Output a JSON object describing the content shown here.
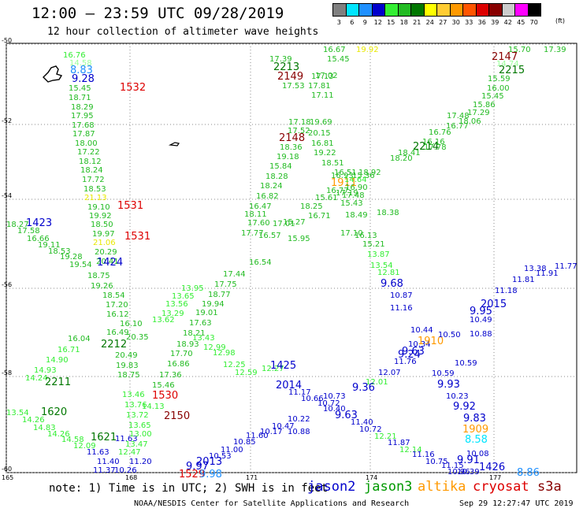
{
  "title": "12:00 – 23:59 UTC 09/28/2019",
  "subtitle": "12 hour collection of altimeter wave heights",
  "legend": {
    "labels": [
      "3",
      "6",
      "9",
      "12",
      "15",
      "18",
      "21",
      "24",
      "27",
      "30",
      "33",
      "36",
      "39",
      "42",
      "45",
      "70"
    ],
    "colors": [
      "#7f7f7f",
      "#00e5ff",
      "#1f90ff",
      "#0000cc",
      "#33ee33",
      "#22bb22",
      "#007700",
      "#ffff00",
      "#ffcc33",
      "#ff9900",
      "#ff5500",
      "#dd0000",
      "#880000",
      "#cccccc",
      "#ff00ff",
      "#000000"
    ],
    "unit": "(ft)"
  },
  "axes": {
    "y_labels": [
      "-50",
      "-52",
      "-54",
      "-56",
      "-58",
      "-60"
    ],
    "x_labels": [
      "165",
      "168",
      "171",
      "174",
      "177"
    ]
  },
  "map": {
    "labels": [
      {
        "t": "16.76",
        "c": "#33ee33"
      },
      {
        "t": "14.58",
        "c": "#99ff99"
      },
      {
        "t": "8.83",
        "c": "#1f90ff"
      },
      {
        "t": "9.28",
        "c": "#0000cc"
      },
      {
        "t": "15.45",
        "c": "#22bb22"
      },
      {
        "t": "18.71",
        "c": "#22bb22"
      },
      {
        "t": "18.29",
        "c": "#22bb22"
      },
      {
        "t": "17.95",
        "c": "#22bb22"
      },
      {
        "t": "17.68",
        "c": "#22bb22"
      },
      {
        "t": "17.87",
        "c": "#22bb22"
      },
      {
        "t": "18.00",
        "c": "#22bb22"
      },
      {
        "t": "17.22",
        "c": "#22bb22"
      },
      {
        "t": "18.12",
        "c": "#22bb22"
      },
      {
        "t": "18.24",
        "c": "#22bb22"
      },
      {
        "t": "17.72",
        "c": "#22bb22"
      },
      {
        "t": "18.53",
        "c": "#22bb22"
      },
      {
        "t": "21.13",
        "c": "#e8e800"
      },
      {
        "t": "19.10",
        "c": "#22bb22"
      },
      {
        "t": "19.92",
        "c": "#22bb22"
      },
      {
        "t": "18.50",
        "c": "#22bb22"
      },
      {
        "t": "19.97",
        "c": "#22bb22"
      },
      {
        "t": "21.06",
        "c": "#e8e800"
      },
      {
        "t": "20.29",
        "c": "#22bb22"
      },
      {
        "t": "20.41",
        "c": "#22bb22"
      },
      {
        "t": "1532",
        "c": "#dd0000"
      },
      {
        "t": "1531",
        "c": "#dd0000"
      },
      {
        "t": "1531",
        "c": "#dd0000"
      },
      {
        "t": "1423",
        "c": "#0000cc"
      },
      {
        "t": "1424",
        "c": "#0000cc"
      },
      {
        "t": "18.27",
        "c": "#22bb22"
      },
      {
        "t": "17.58",
        "c": "#22bb22"
      },
      {
        "t": "16.66",
        "c": "#22bb22"
      },
      {
        "t": "19.11",
        "c": "#22bb22"
      },
      {
        "t": "18.53",
        "c": "#22bb22"
      },
      {
        "t": "19.28",
        "c": "#22bb22"
      },
      {
        "t": "19.54",
        "c": "#22bb22"
      },
      {
        "t": "18.75",
        "c": "#22bb22"
      },
      {
        "t": "19.26",
        "c": "#22bb22"
      },
      {
        "t": "18.54",
        "c": "#22bb22"
      },
      {
        "t": "17.20",
        "c": "#22bb22"
      },
      {
        "t": "16.12",
        "c": "#22bb22"
      },
      {
        "t": "16.10",
        "c": "#22bb22"
      },
      {
        "t": "16.49",
        "c": "#22bb22"
      },
      {
        "t": "20.35",
        "c": "#22bb22"
      },
      {
        "t": "2212",
        "c": "#007700"
      },
      {
        "t": "20.49",
        "c": "#22bb22"
      },
      {
        "t": "19.83",
        "c": "#22bb22"
      },
      {
        "t": "18.75",
        "c": "#22bb22"
      },
      {
        "t": "16.04",
        "c": "#22bb22"
      },
      {
        "t": "16.71",
        "c": "#33ee33"
      },
      {
        "t": "14.90",
        "c": "#33ee33"
      },
      {
        "t": "14.93",
        "c": "#33ee33"
      },
      {
        "t": "14.24",
        "c": "#33ee33"
      },
      {
        "t": "2211",
        "c": "#007700"
      },
      {
        "t": "13.54",
        "c": "#33ee33"
      },
      {
        "t": "1620",
        "c": "#007700"
      },
      {
        "t": "14.26",
        "c": "#33ee33"
      },
      {
        "t": "14.83",
        "c": "#33ee33"
      },
      {
        "t": "14.26",
        "c": "#33ee33"
      },
      {
        "t": "14.58",
        "c": "#33ee33"
      },
      {
        "t": "12.09",
        "c": "#33ee33"
      },
      {
        "t": "1621",
        "c": "#007700"
      },
      {
        "t": "11.63",
        "c": "#0000cc"
      },
      {
        "t": "11.40",
        "c": "#0000cc"
      },
      {
        "t": "11.37",
        "c": "#0000cc"
      },
      {
        "t": "10.26",
        "c": "#0000cc"
      },
      {
        "t": "11.20",
        "c": "#0000cc"
      },
      {
        "t": "11.63",
        "c": "#0000cc"
      },
      {
        "t": "13.46",
        "c": "#33ee33"
      },
      {
        "t": "13.76",
        "c": "#33ee33"
      },
      {
        "t": "13.72",
        "c": "#33ee33"
      },
      {
        "t": "13.65",
        "c": "#33ee33"
      },
      {
        "t": "13.00",
        "c": "#33ee33"
      },
      {
        "t": "13.47",
        "c": "#33ee33"
      },
      {
        "t": "12.47",
        "c": "#33ee33"
      },
      {
        "t": "1530",
        "c": "#dd0000"
      },
      {
        "t": "2150",
        "c": "#880000"
      },
      {
        "t": "14.13",
        "c": "#33ee33"
      },
      {
        "t": "15.46",
        "c": "#22bb22"
      },
      {
        "t": "17.36",
        "c": "#22bb22"
      },
      {
        "t": "16.86",
        "c": "#22bb22"
      },
      {
        "t": "17.70",
        "c": "#22bb22"
      },
      {
        "t": "18.93",
        "c": "#22bb22"
      },
      {
        "t": "18.21",
        "c": "#22bb22"
      },
      {
        "t": "17.63",
        "c": "#22bb22"
      },
      {
        "t": "19.01",
        "c": "#22bb22"
      },
      {
        "t": "19.94",
        "c": "#22bb22"
      },
      {
        "t": "18.77",
        "c": "#22bb22"
      },
      {
        "t": "17.75",
        "c": "#22bb22"
      },
      {
        "t": "17.44",
        "c": "#22bb22"
      },
      {
        "t": "13.62",
        "c": "#33ee33"
      },
      {
        "t": "13.29",
        "c": "#33ee33"
      },
      {
        "t": "13.56",
        "c": "#33ee33"
      },
      {
        "t": "13.65",
        "c": "#33ee33"
      },
      {
        "t": "13.95",
        "c": "#33ee33"
      },
      {
        "t": "13.43",
        "c": "#33ee33"
      },
      {
        "t": "12.99",
        "c": "#33ee33"
      },
      {
        "t": "12.98",
        "c": "#33ee33"
      },
      {
        "t": "12.25",
        "c": "#33ee33"
      },
      {
        "t": "12.59",
        "c": "#33ee33"
      },
      {
        "t": "12.27",
        "c": "#33ee33"
      },
      {
        "t": "1425",
        "c": "#0000cc"
      },
      {
        "t": "1529",
        "c": "#dd0000"
      },
      {
        "t": "9.97",
        "c": "#0000cc"
      },
      {
        "t": "9.98",
        "c": "#1f90ff"
      },
      {
        "t": "2013",
        "c": "#0000cc"
      },
      {
        "t": "10.53",
        "c": "#0000cc"
      },
      {
        "t": "11.00",
        "c": "#0000cc"
      },
      {
        "t": "10.85",
        "c": "#0000cc"
      },
      {
        "t": "11.60",
        "c": "#0000cc"
      },
      {
        "t": "10.17",
        "c": "#0000cc"
      },
      {
        "t": "10.47",
        "c": "#0000cc"
      },
      {
        "t": "10.22",
        "c": "#0000cc"
      },
      {
        "t": "10.88",
        "c": "#0000cc"
      },
      {
        "t": "2014",
        "c": "#0000cc"
      },
      {
        "t": "11.17",
        "c": "#0000cc"
      },
      {
        "t": "10.66",
        "c": "#0000cc"
      },
      {
        "t": "10.72",
        "c": "#0000cc"
      },
      {
        "t": "10.40",
        "c": "#0000cc"
      },
      {
        "t": "10.73",
        "c": "#0000cc"
      },
      {
        "t": "9.63",
        "c": "#0000cc"
      },
      {
        "t": "11.40",
        "c": "#0000cc"
      },
      {
        "t": "10.72",
        "c": "#0000cc"
      },
      {
        "t": "12.21",
        "c": "#33ee33"
      },
      {
        "t": "11.87",
        "c": "#0000cc"
      },
      {
        "t": "12.14",
        "c": "#33ee33"
      },
      {
        "t": "11.16",
        "c": "#0000cc"
      },
      {
        "t": "10.75",
        "c": "#0000cc"
      },
      {
        "t": "11.15",
        "c": "#0000cc"
      },
      {
        "t": "10.96",
        "c": "#0000cc"
      },
      {
        "t": "10.39",
        "c": "#0000cc"
      },
      {
        "t": "9.91",
        "c": "#0000cc"
      },
      {
        "t": "10.08",
        "c": "#0000cc"
      },
      {
        "t": "1426",
        "c": "#0000cc"
      },
      {
        "t": "8.86",
        "c": "#1f90ff"
      },
      {
        "t": "8.58",
        "c": "#00e5ff"
      },
      {
        "t": "1909",
        "c": "#ff9900"
      },
      {
        "t": "9.83",
        "c": "#0000cc"
      },
      {
        "t": "9.92",
        "c": "#0000cc"
      },
      {
        "t": "10.23",
        "c": "#0000cc"
      },
      {
        "t": "9.93",
        "c": "#0000cc"
      },
      {
        "t": "10.59",
        "c": "#0000cc"
      },
      {
        "t": "10.59",
        "c": "#0000cc"
      },
      {
        "t": "9.63",
        "c": "#0000cc"
      },
      {
        "t": "10.34",
        "c": "#0000cc"
      },
      {
        "t": "1910",
        "c": "#ff9900"
      },
      {
        "t": "10.44",
        "c": "#0000cc"
      },
      {
        "t": "10.50",
        "c": "#0000cc"
      },
      {
        "t": "10.88",
        "c": "#0000cc"
      },
      {
        "t": "10.49",
        "c": "#0000cc"
      },
      {
        "t": "9.95",
        "c": "#0000cc"
      },
      {
        "t": "2015",
        "c": "#0000cc"
      },
      {
        "t": "11.18",
        "c": "#0000cc"
      },
      {
        "t": "11.81",
        "c": "#0000cc"
      },
      {
        "t": "13.38",
        "c": "#0000cc"
      },
      {
        "t": "11.77",
        "c": "#0000cc"
      },
      {
        "t": "11.91",
        "c": "#0000cc"
      },
      {
        "t": "11.76",
        "c": "#0000cc"
      },
      {
        "t": "12.07",
        "c": "#0000cc"
      },
      {
        "t": "12.01",
        "c": "#33ee33"
      },
      {
        "t": "9.36",
        "c": "#0000cc"
      },
      {
        "t": "9.24",
        "c": "#0000cc"
      },
      {
        "t": "11.16",
        "c": "#0000cc"
      },
      {
        "t": "10.87",
        "c": "#0000cc"
      },
      {
        "t": "9.68",
        "c": "#0000cc"
      },
      {
        "t": "12.81",
        "c": "#33ee33"
      },
      {
        "t": "13.54",
        "c": "#33ee33"
      },
      {
        "t": "13.87",
        "c": "#33ee33"
      },
      {
        "t": "15.21",
        "c": "#22bb22"
      },
      {
        "t": "16.13",
        "c": "#22bb22"
      },
      {
        "t": "17.10",
        "c": "#22bb22"
      },
      {
        "t": "18.49",
        "c": "#22bb22"
      },
      {
        "t": "18.38",
        "c": "#22bb22"
      },
      {
        "t": "15.43",
        "c": "#22bb22"
      },
      {
        "t": "17.19",
        "c": "#22bb22"
      },
      {
        "t": "1911",
        "c": "#ff9900"
      },
      {
        "t": "16.93",
        "c": "#22bb22"
      },
      {
        "t": "16.51",
        "c": "#22bb22"
      },
      {
        "t": "18.92",
        "c": "#22bb22"
      },
      {
        "t": "18.51",
        "c": "#22bb22"
      },
      {
        "t": "19.22",
        "c": "#22bb22"
      },
      {
        "t": "16.81",
        "c": "#22bb22"
      },
      {
        "t": "20.15",
        "c": "#22bb22"
      },
      {
        "t": "19.69",
        "c": "#22bb22"
      },
      {
        "t": "19.18",
        "c": "#22bb22"
      },
      {
        "t": "18.36",
        "c": "#22bb22"
      },
      {
        "t": "2148",
        "c": "#880000"
      },
      {
        "t": "17.52",
        "c": "#22bb22"
      },
      {
        "t": "17.18",
        "c": "#22bb22"
      },
      {
        "t": "15.84",
        "c": "#22bb22"
      },
      {
        "t": "18.28",
        "c": "#22bb22"
      },
      {
        "t": "18.24",
        "c": "#22bb22"
      },
      {
        "t": "16.82",
        "c": "#22bb22"
      },
      {
        "t": "16.47",
        "c": "#22bb22"
      },
      {
        "t": "18.11",
        "c": "#22bb22"
      },
      {
        "t": "17.60",
        "c": "#22bb22"
      },
      {
        "t": "17.77",
        "c": "#22bb22"
      },
      {
        "t": "17.01",
        "c": "#22bb22"
      },
      {
        "t": "16.57",
        "c": "#22bb22"
      },
      {
        "t": "15.95",
        "c": "#22bb22"
      },
      {
        "t": "16.54",
        "c": "#22bb22"
      },
      {
        "t": "17.39",
        "c": "#22bb22"
      },
      {
        "t": "2213",
        "c": "#007700"
      },
      {
        "t": "2149",
        "c": "#880000"
      },
      {
        "t": "17.53",
        "c": "#22bb22"
      },
      {
        "t": "17.81",
        "c": "#22bb22"
      },
      {
        "t": "17.11",
        "c": "#22bb22"
      },
      {
        "t": "17.02",
        "c": "#22bb22"
      },
      {
        "t": "17.13",
        "c": "#22bb22"
      },
      {
        "t": "16.67",
        "c": "#22bb22"
      },
      {
        "t": "15.45",
        "c": "#22bb22"
      },
      {
        "t": "19.92",
        "c": "#e8e800"
      },
      {
        "t": "15.70",
        "c": "#22bb22"
      },
      {
        "t": "17.39",
        "c": "#22bb22"
      },
      {
        "t": "2147",
        "c": "#880000"
      },
      {
        "t": "14.74",
        "c": "#99ff99"
      },
      {
        "t": "2215",
        "c": "#007700"
      },
      {
        "t": "15.59",
        "c": "#22bb22"
      },
      {
        "t": "16.00",
        "c": "#22bb22"
      },
      {
        "t": "15.45",
        "c": "#22bb22"
      },
      {
        "t": "15.86",
        "c": "#22bb22"
      },
      {
        "t": "17.29",
        "c": "#22bb22"
      },
      {
        "t": "18.06",
        "c": "#22bb22"
      },
      {
        "t": "17.78",
        "c": "#22bb22"
      },
      {
        "t": "16.16",
        "c": "#22bb22"
      },
      {
        "t": "2214",
        "c": "#007700"
      },
      {
        "t": "18.41",
        "c": "#22bb22"
      },
      {
        "t": "18.20",
        "c": "#22bb22"
      },
      {
        "t": "16.76",
        "c": "#22bb22"
      },
      {
        "t": "16.77",
        "c": "#22bb22"
      },
      {
        "t": "17.48",
        "c": "#22bb22"
      },
      {
        "t": "18.25",
        "c": "#22bb22"
      },
      {
        "t": "16.71",
        "c": "#22bb22"
      },
      {
        "t": "15.27",
        "c": "#22bb22"
      },
      {
        "t": "15.61",
        "c": "#22bb22"
      },
      {
        "t": "15.36",
        "c": "#22bb22"
      },
      {
        "t": "14.64",
        "c": "#33ee33"
      },
      {
        "t": "16.90",
        "c": "#22bb22"
      },
      {
        "t": "16.77",
        "c": "#22bb22"
      },
      {
        "t": "17.48",
        "c": "#22bb22"
      },
      {
        "t": "17.66",
        "c": "#22bb22"
      }
    ]
  },
  "footer": {
    "note": "note: 1) Time is in UTC; 2) SWH is in feet",
    "satellites": [
      {
        "name": "jason2",
        "color": "#0000cc"
      },
      {
        "name": "jason3",
        "color": "#009900"
      },
      {
        "name": "altika",
        "color": "#ff9900"
      },
      {
        "name": "cryosat",
        "color": "#dd0000"
      },
      {
        "name": "s3a",
        "color": "#880000"
      }
    ],
    "credit": "NOAA/NESDIS Center for Satellite Applications and Research",
    "timestamp": "Sep 29 12:27:47 UTC 2019"
  }
}
